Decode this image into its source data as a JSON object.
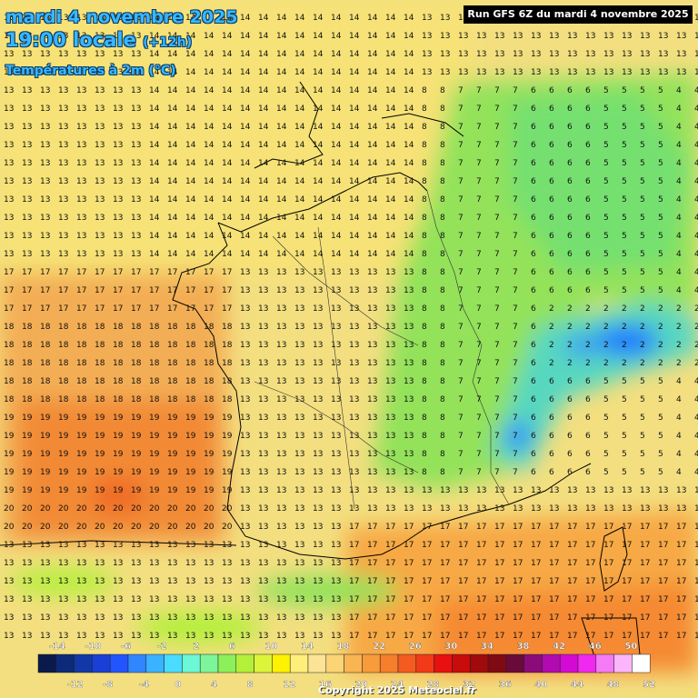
{
  "header": {
    "date_line": "mardi 4 novembre 2025",
    "time_line": "19:00 locale",
    "offset": "(+12h)",
    "variable": "Températures à 2m (°C)",
    "run": "Run GFS 6Z du mardi 4 novembre 2025"
  },
  "legend": {
    "top_labels": [
      "-14",
      "-10",
      "-6",
      "-2",
      "2",
      "6",
      "10",
      "14",
      "18",
      "22",
      "26",
      "30",
      "34",
      "38",
      "42",
      "46",
      "50"
    ],
    "bottom_labels": [
      "-12",
      "-8",
      "-4",
      "0",
      "4",
      "8",
      "12",
      "16",
      "20",
      "24",
      "28",
      "32",
      "36",
      "40",
      "44",
      "48",
      "52"
    ],
    "colors": [
      "#0a1a4a",
      "#0d2a7a",
      "#1238a8",
      "#1a3fd6",
      "#2255ff",
      "#2f86ff",
      "#39b2ff",
      "#49dcff",
      "#6cf7d6",
      "#7ef59a",
      "#8cf05a",
      "#b3f03a",
      "#dcf43a",
      "#fff200",
      "#ffef7a",
      "#fde396",
      "#fbd475",
      "#f9b552",
      "#f79b3b",
      "#f77e2a",
      "#f45b20",
      "#f23a18",
      "#e81010",
      "#c80b0b",
      "#a00a0a",
      "#800a14",
      "#6a0a3a",
      "#8c0a7a",
      "#b00ab0",
      "#d40ad4",
      "#f028f0",
      "#f57af5",
      "#fbb6fb",
      "#ffffff"
    ]
  },
  "copyright": "Copyright 2025 Meteociel.fr"
}
